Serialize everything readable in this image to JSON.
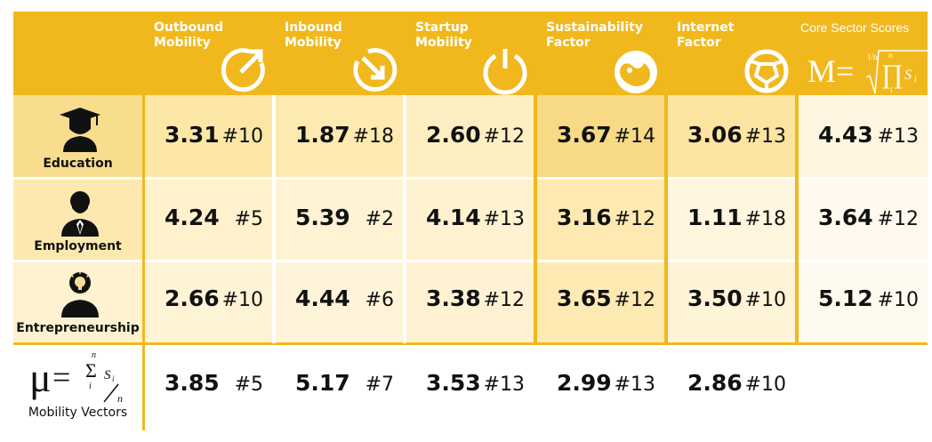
{
  "header": {
    "columns": [
      {
        "line1": "Outbound",
        "line2": "Mobility",
        "icon": "outbound-arrow-icon"
      },
      {
        "line1": "Inbound",
        "line2": "Mobility",
        "icon": "inbound-arrow-icon"
      },
      {
        "line1": "Startup",
        "line2": "Mobility",
        "icon": "power-icon"
      },
      {
        "line1": "Sustainability",
        "line2": "Factor",
        "icon": "yin-yang-icon"
      },
      {
        "line1": "Internet",
        "line2": "Factor",
        "icon": "globe-network-icon"
      }
    ],
    "core": {
      "label": "Core Sector Scores",
      "formula_main": "M=",
      "formula_sup": "1/n",
      "formula_n": "n",
      "formula_i": "i",
      "formula_s": "S"
    }
  },
  "rows": [
    {
      "label": "Education",
      "icon": "graduate-icon",
      "cells": [
        {
          "value": "3.31",
          "rank": "#10"
        },
        {
          "value": "1.87",
          "rank": "#18"
        },
        {
          "value": "2.60",
          "rank": "#12"
        },
        {
          "value": "3.67",
          "rank": "#14"
        },
        {
          "value": "3.06",
          "rank": "#13"
        },
        {
          "value": "4.43",
          "rank": "#13"
        }
      ]
    },
    {
      "label": "Employment",
      "icon": "business-person-icon",
      "cells": [
        {
          "value": "4.24",
          "rank": "#5"
        },
        {
          "value": "5.39",
          "rank": "#2"
        },
        {
          "value": "4.14",
          "rank": "#13"
        },
        {
          "value": "3.16",
          "rank": "#12"
        },
        {
          "value": "1.11",
          "rank": "#18"
        },
        {
          "value": "3.64",
          "rank": "#12"
        }
      ]
    },
    {
      "label": "Entrepreneurship",
      "icon": "idea-person-icon",
      "cells": [
        {
          "value": "2.66",
          "rank": "#10"
        },
        {
          "value": "4.44",
          "rank": "#6"
        },
        {
          "value": "3.38",
          "rank": "#12"
        },
        {
          "value": "3.65",
          "rank": "#12"
        },
        {
          "value": "3.50",
          "rank": "#10"
        },
        {
          "value": "5.12",
          "rank": "#10"
        }
      ]
    }
  ],
  "mobility": {
    "label": "Mobility Vectors",
    "formula_mu": "μ",
    "formula_eq": "=",
    "formula_sigma": "Σ",
    "formula_n": "n",
    "formula_i": "i",
    "formula_s": "S",
    "cells": [
      {
        "value": "3.85",
        "rank": "#5"
      },
      {
        "value": "5.17",
        "rank": "#7"
      },
      {
        "value": "3.53",
        "rank": "#13"
      },
      {
        "value": "2.99",
        "rank": "#13"
      },
      {
        "value": "2.86",
        "rank": "#10"
      }
    ]
  },
  "colors": {
    "header": "#f1b81e",
    "edu": [
      "#fde7a6",
      "#fdeab0",
      "#feefc2",
      "#f8da86",
      "#fde4a0",
      "#fff6e1"
    ],
    "emp": [
      "#fef1cc",
      "#fff3d4",
      "#fef2d0",
      "#fde9b1",
      "#fff6e0",
      "#fff9ee"
    ],
    "ent": [
      "#fff3d6",
      "#fff4d9",
      "#fff2d3",
      "#fdeab3",
      "#fff4d8",
      "#fffaf0"
    ]
  }
}
